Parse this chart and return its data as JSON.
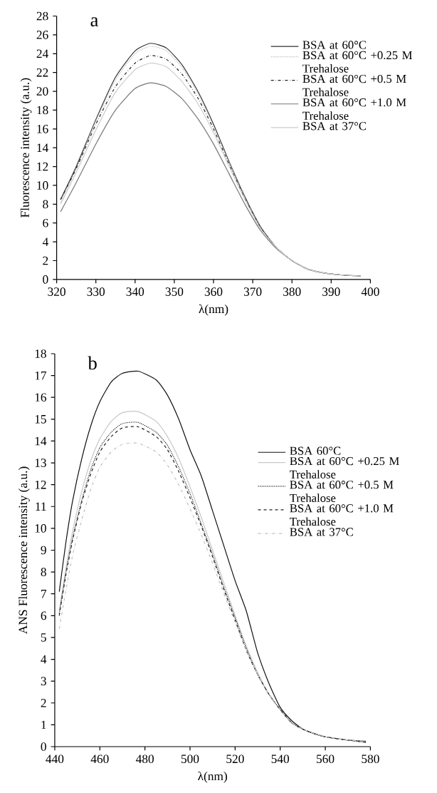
{
  "chart_data": [
    {
      "type": "line",
      "title": "a",
      "xlabel": "λ(nm)",
      "ylabel": "Fluorescence intensity (a.u.)",
      "xlim": [
        320,
        400
      ],
      "ylim": [
        0,
        28
      ],
      "xticks": [
        320,
        330,
        340,
        350,
        360,
        370,
        380,
        390,
        400
      ],
      "yticks": [
        0,
        2,
        4,
        6,
        8,
        10,
        12,
        14,
        16,
        18,
        20,
        22,
        24,
        26,
        28
      ],
      "legend": "top right",
      "x": [
        321,
        325,
        330,
        335,
        340,
        344,
        348,
        352,
        356,
        360,
        364,
        368,
        372,
        376,
        380,
        384,
        388,
        392,
        397.5
      ],
      "series": [
        {
          "name": "BSA at 60°C",
          "color": "#333333",
          "line_style": "solid",
          "values": [
            8.5,
            12,
            17,
            21.5,
            24.3,
            25.1,
            24.6,
            22.8,
            20,
            16.5,
            12.5,
            8.8,
            5.6,
            3.4,
            2.0,
            1.1,
            0.7,
            0.5,
            0.35
          ]
        },
        {
          "name": "BSA at 60°C +0.25 M Trehalose",
          "color": "#bbbbbb",
          "line_style": "dotted",
          "values": [
            8.2,
            11.8,
            16.8,
            21.2,
            24.0,
            24.8,
            24.3,
            22.5,
            19.8,
            16.3,
            12.4,
            8.7,
            5.5,
            3.4,
            2.0,
            1.1,
            0.7,
            0.5,
            0.35
          ]
        },
        {
          "name": "BSA at 60°C +0.5 M Trehalose",
          "color": "#222222",
          "line_style": "dashdot",
          "values": [
            8.5,
            11.8,
            16.5,
            20.5,
            23.0,
            23.8,
            23.4,
            21.8,
            19.3,
            16.0,
            12.2,
            8.6,
            5.5,
            3.4,
            2.0,
            1.1,
            0.7,
            0.5,
            0.35
          ]
        },
        {
          "name": "BSA at 60°C +1.0 M Trehalose",
          "color": "#777777",
          "line_style": "solid",
          "values": [
            7.2,
            10.3,
            14.4,
            18.0,
            20.3,
            20.9,
            20.5,
            19.2,
            17.1,
            14.4,
            11.2,
            8.0,
            5.2,
            3.3,
            2.0,
            1.1,
            0.7,
            0.5,
            0.35
          ]
        },
        {
          "name": "BSA at 37°C",
          "color": "#cccccc",
          "line_style": "solid",
          "values": [
            8.0,
            11.4,
            15.9,
            19.9,
            22.3,
            23.0,
            22.6,
            21.0,
            18.7,
            15.6,
            12.0,
            8.5,
            5.4,
            3.4,
            2.0,
            1.1,
            0.7,
            0.5,
            0.35
          ]
        }
      ]
    },
    {
      "type": "line",
      "title": "b",
      "xlabel": "λ(nm)",
      "ylabel": "ANS Fluorescence intensity (a.u.)",
      "xlim": [
        440,
        580
      ],
      "ylim": [
        0,
        18
      ],
      "xticks": [
        440,
        460,
        480,
        500,
        520,
        540,
        560,
        580
      ],
      "yticks": [
        0,
        1,
        2,
        3,
        4,
        5,
        6,
        7,
        8,
        9,
        10,
        11,
        12,
        13,
        14,
        15,
        16,
        17,
        18
      ],
      "legend": "right",
      "x": [
        442,
        445,
        448,
        452,
        456,
        460,
        465,
        470,
        477,
        485,
        490,
        495,
        500,
        505,
        510,
        515,
        520,
        525,
        530,
        535,
        540,
        545,
        550,
        555,
        560,
        570,
        578
      ],
      "series": [
        {
          "name": "BSA 60°C",
          "color": "#111111",
          "line_style": "solid",
          "values": [
            7.1,
            9.4,
            11.3,
            13.2,
            14.7,
            15.8,
            16.7,
            17.1,
            17.2,
            16.8,
            16.1,
            15.0,
            13.6,
            12.4,
            10.8,
            9.2,
            7.6,
            6.2,
            4.3,
            2.9,
            1.8,
            1.2,
            0.8,
            0.6,
            0.45,
            0.3,
            0.25
          ]
        },
        {
          "name": "BSA at 60°C +0.25 M Trehalose",
          "color": "#c8c8c8",
          "line_style": "solid",
          "values": [
            6.2,
            8.2,
            9.9,
            11.7,
            13.1,
            14.1,
            14.9,
            15.3,
            15.35,
            14.9,
            14.2,
            13.2,
            11.9,
            10.5,
            9.0,
            7.5,
            6.0,
            4.6,
            3.4,
            2.4,
            1.7,
            1.1,
            0.8,
            0.6,
            0.45,
            0.3,
            0.22
          ]
        },
        {
          "name": "BSA at 60°C +0.5 M Trehalose",
          "color": "#222222",
          "line_style": "dotted",
          "values": [
            6.1,
            8.0,
            9.6,
            11.3,
            12.7,
            13.7,
            14.4,
            14.8,
            14.85,
            14.4,
            13.8,
            12.8,
            11.6,
            10.2,
            8.8,
            7.3,
            5.9,
            4.5,
            3.3,
            2.4,
            1.7,
            1.1,
            0.8,
            0.6,
            0.45,
            0.3,
            0.2
          ]
        },
        {
          "name": "BSA at 60°C +1.0 M Trehalose",
          "color": "#222222",
          "line_style": "dashed",
          "values": [
            6.0,
            7.9,
            9.5,
            11.2,
            12.5,
            13.5,
            14.2,
            14.6,
            14.65,
            14.2,
            13.6,
            12.6,
            11.4,
            10.1,
            8.7,
            7.2,
            5.8,
            4.4,
            3.3,
            2.4,
            1.7,
            1.1,
            0.8,
            0.6,
            0.45,
            0.3,
            0.2
          ]
        },
        {
          "name": "BSA  at 37°C",
          "color": "#c0c0c0",
          "line_style": "dashdot",
          "values": [
            5.4,
            7.2,
            8.8,
            10.4,
            11.8,
            12.8,
            13.5,
            13.85,
            13.9,
            13.5,
            12.9,
            12.0,
            10.9,
            9.7,
            8.4,
            7.0,
            5.7,
            4.4,
            3.3,
            2.4,
            1.7,
            1.1,
            0.8,
            0.6,
            0.45,
            0.3,
            0.25
          ]
        }
      ]
    }
  ]
}
